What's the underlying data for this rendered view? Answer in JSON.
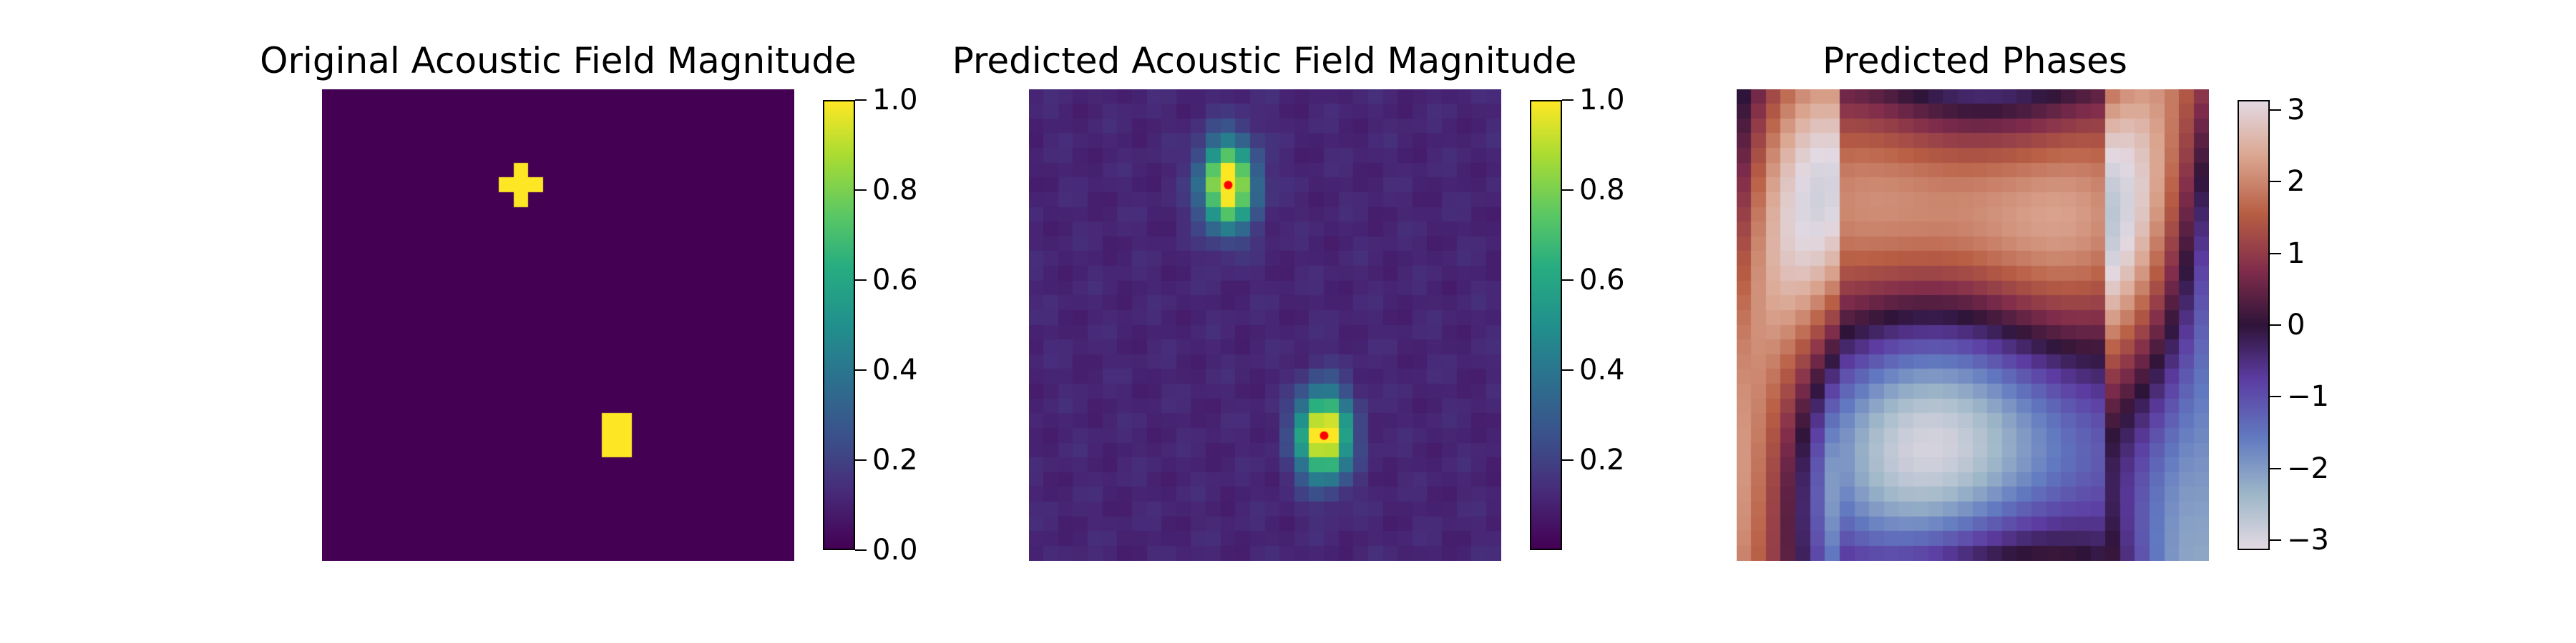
{
  "chart_data": [
    {
      "type": "heatmap",
      "title": "Original Acoustic Field Magnitude",
      "colormap": "viridis",
      "grid_size": [
        32,
        32
      ],
      "vmin": 0.0,
      "vmax": 1.0,
      "colorbar_ticks": [
        "0.0",
        "0.2",
        "0.4",
        "0.6",
        "0.8",
        "1.0"
      ],
      "colorbar_tick_values": [
        0.0,
        0.2,
        0.4,
        0.6,
        0.8,
        1.0
      ],
      "focal_points": [
        {
          "x": 13,
          "y": 6,
          "value": 1.0
        },
        {
          "x": 19.5,
          "y": 23,
          "value": 1.0
        }
      ],
      "background_value": 0.0,
      "axes": "off"
    },
    {
      "type": "heatmap",
      "title": "Predicted Acoustic Field Magnitude",
      "colormap": "viridis",
      "grid_size": [
        32,
        32
      ],
      "vmin": 0.0,
      "vmax": 1.0,
      "colorbar_ticks": [
        "0.2",
        "0.4",
        "0.6",
        "0.8",
        "1.0"
      ],
      "colorbar_tick_values": [
        0.2,
        0.4,
        0.6,
        0.8,
        1.0
      ],
      "focal_points": [
        {
          "x": 13,
          "y": 6,
          "value": 1.0
        },
        {
          "x": 19.5,
          "y": 23,
          "value": 1.0
        }
      ],
      "marker_color": "#ff0000",
      "background_value": 0.08,
      "axes": "off"
    },
    {
      "type": "heatmap",
      "title": "Predicted Phases",
      "colormap": "twilight",
      "grid_size": [
        32,
        32
      ],
      "vmin": -3.14,
      "vmax": 3.14,
      "colorbar_ticks": [
        "−3",
        "−2",
        "−1",
        "0",
        "1",
        "2",
        "3"
      ],
      "colorbar_tick_values": [
        -3,
        -2,
        -1,
        0,
        1,
        2,
        3
      ],
      "axes": "off"
    }
  ]
}
